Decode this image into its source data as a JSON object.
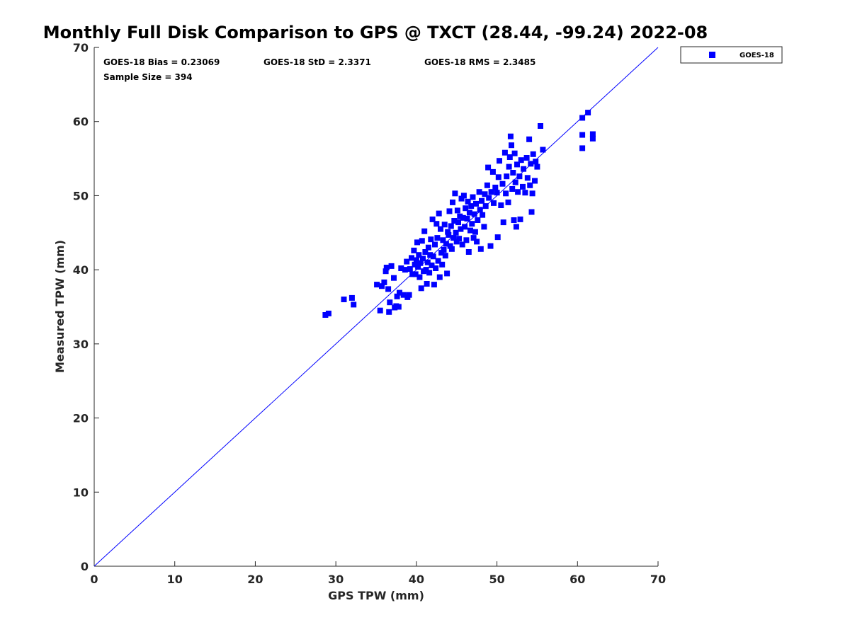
{
  "chart_data": {
    "type": "scatter",
    "title": "Monthly Full Disk Comparison to GPS @ TXCT (28.44, -99.24) 2022-08",
    "xlabel": "GPS TPW (mm)",
    "ylabel": "Measured TPW (mm)",
    "xlim": [
      0,
      70
    ],
    "ylim": [
      0,
      70
    ],
    "xticks": [
      "0",
      "10",
      "20",
      "30",
      "40",
      "50",
      "60",
      "70"
    ],
    "yticks": [
      "0",
      "10",
      "20",
      "30",
      "40",
      "50",
      "60",
      "70"
    ],
    "grid": false,
    "legend_position": "outside-top-right",
    "reference_line": {
      "from": [
        0,
        0
      ],
      "to": [
        70,
        70
      ],
      "color": "#0000ff"
    },
    "stats": {
      "bias": "GOES-18 Bias = 0.23069",
      "std": "GOES-18 StD = 2.3371",
      "rms": "GOES-18 RMS = 2.3485",
      "sample_size": "Sample Size = 394"
    },
    "series": [
      {
        "name": "GOES-18",
        "color": "#0000ff",
        "marker": "square",
        "points": [
          [
            28.7,
            33.9
          ],
          [
            29.1,
            34.1
          ],
          [
            31.0,
            36.0
          ],
          [
            32.0,
            36.2
          ],
          [
            32.2,
            35.3
          ],
          [
            35.1,
            38.0
          ],
          [
            35.5,
            34.5
          ],
          [
            35.7,
            37.8
          ],
          [
            36.0,
            38.3
          ],
          [
            36.2,
            39.8
          ],
          [
            36.3,
            40.3
          ],
          [
            36.5,
            37.4
          ],
          [
            36.6,
            34.3
          ],
          [
            36.7,
            35.6
          ],
          [
            36.9,
            40.5
          ],
          [
            37.2,
            38.9
          ],
          [
            37.3,
            34.9
          ],
          [
            37.5,
            35.1
          ],
          [
            37.6,
            36.4
          ],
          [
            37.8,
            35.0
          ],
          [
            37.9,
            36.9
          ],
          [
            38.1,
            40.2
          ],
          [
            38.4,
            36.6
          ],
          [
            38.6,
            40.0
          ],
          [
            38.8,
            41.1
          ],
          [
            38.9,
            36.3
          ],
          [
            39.1,
            36.6
          ],
          [
            39.2,
            40.1
          ],
          [
            39.4,
            41.6
          ],
          [
            39.5,
            39.4
          ],
          [
            39.7,
            42.6
          ],
          [
            39.8,
            40.7
          ],
          [
            39.9,
            39.4
          ],
          [
            40.0,
            41.3
          ],
          [
            40.1,
            43.7
          ],
          [
            40.2,
            40.4
          ],
          [
            40.3,
            42.0
          ],
          [
            40.4,
            39.0
          ],
          [
            40.5,
            40.9
          ],
          [
            40.6,
            37.5
          ],
          [
            40.7,
            43.9
          ],
          [
            40.8,
            41.5
          ],
          [
            40.9,
            39.8
          ],
          [
            41.0,
            45.2
          ],
          [
            41.1,
            42.4
          ],
          [
            41.2,
            40.0
          ],
          [
            41.3,
            38.1
          ],
          [
            41.4,
            41.0
          ],
          [
            41.5,
            43.0
          ],
          [
            41.6,
            39.6
          ],
          [
            41.7,
            42.0
          ],
          [
            41.8,
            44.1
          ],
          [
            41.9,
            40.6
          ],
          [
            42.0,
            46.8
          ],
          [
            42.1,
            41.8
          ],
          [
            42.2,
            38.0
          ],
          [
            42.3,
            43.4
          ],
          [
            42.4,
            40.2
          ],
          [
            42.5,
            46.2
          ],
          [
            42.6,
            44.3
          ],
          [
            42.7,
            41.2
          ],
          [
            42.8,
            47.6
          ],
          [
            42.9,
            39.0
          ],
          [
            43.0,
            45.5
          ],
          [
            43.1,
            42.3
          ],
          [
            43.2,
            40.7
          ],
          [
            43.3,
            44.0
          ],
          [
            43.4,
            42.7
          ],
          [
            43.5,
            46.1
          ],
          [
            43.6,
            41.9
          ],
          [
            43.7,
            43.5
          ],
          [
            43.8,
            39.5
          ],
          [
            43.9,
            45.1
          ],
          [
            44.0,
            44.7
          ],
          [
            44.1,
            47.9
          ],
          [
            44.2,
            43.2
          ],
          [
            44.3,
            45.9
          ],
          [
            44.4,
            42.8
          ],
          [
            44.5,
            49.1
          ],
          [
            44.6,
            44.3
          ],
          [
            44.7,
            46.6
          ],
          [
            44.8,
            50.3
          ],
          [
            44.9,
            45.0
          ],
          [
            45.0,
            43.8
          ],
          [
            45.1,
            48.0
          ],
          [
            45.2,
            46.4
          ],
          [
            45.3,
            44.2
          ],
          [
            45.4,
            47.2
          ],
          [
            45.5,
            45.5
          ],
          [
            45.6,
            49.6
          ],
          [
            45.7,
            43.4
          ],
          [
            45.8,
            47.0
          ],
          [
            45.9,
            50.0
          ],
          [
            46.0,
            45.8
          ],
          [
            46.1,
            48.3
          ],
          [
            46.2,
            44.0
          ],
          [
            46.3,
            46.9
          ],
          [
            46.4,
            49.2
          ],
          [
            46.5,
            42.4
          ],
          [
            46.6,
            47.7
          ],
          [
            46.7,
            45.3
          ],
          [
            46.8,
            48.6
          ],
          [
            46.9,
            46.2
          ],
          [
            47.0,
            49.8
          ],
          [
            47.1,
            44.3
          ],
          [
            47.2,
            47.5
          ],
          [
            47.3,
            45.1
          ],
          [
            47.4,
            48.9
          ],
          [
            47.5,
            43.8
          ],
          [
            47.6,
            46.7
          ],
          [
            47.8,
            50.5
          ],
          [
            47.9,
            48.1
          ],
          [
            48.0,
            42.8
          ],
          [
            48.1,
            49.3
          ],
          [
            48.2,
            47.4
          ],
          [
            48.4,
            45.8
          ],
          [
            48.5,
            50.2
          ],
          [
            48.6,
            48.6
          ],
          [
            48.8,
            51.4
          ],
          [
            48.9,
            53.8
          ],
          [
            49.0,
            49.7
          ],
          [
            49.2,
            43.2
          ],
          [
            49.3,
            50.5
          ],
          [
            49.5,
            53.2
          ],
          [
            49.6,
            49.0
          ],
          [
            49.8,
            51.1
          ],
          [
            50.0,
            50.4
          ],
          [
            50.1,
            44.4
          ],
          [
            50.2,
            52.5
          ],
          [
            50.3,
            54.7
          ],
          [
            50.5,
            48.7
          ],
          [
            50.7,
            51.6
          ],
          [
            50.8,
            46.4
          ],
          [
            51.0,
            55.8
          ],
          [
            51.1,
            50.3
          ],
          [
            51.2,
            52.6
          ],
          [
            51.4,
            49.1
          ],
          [
            51.5,
            53.9
          ],
          [
            51.6,
            55.2
          ],
          [
            51.7,
            58.0
          ],
          [
            51.8,
            56.8
          ],
          [
            51.9,
            50.9
          ],
          [
            52.0,
            53.1
          ],
          [
            52.1,
            46.7
          ],
          [
            52.2,
            55.7
          ],
          [
            52.3,
            51.8
          ],
          [
            52.4,
            45.8
          ],
          [
            52.5,
            54.2
          ],
          [
            52.6,
            50.5
          ],
          [
            52.8,
            52.6
          ],
          [
            52.9,
            46.8
          ],
          [
            53.0,
            54.8
          ],
          [
            53.2,
            51.2
          ],
          [
            53.3,
            53.6
          ],
          [
            53.5,
            50.4
          ],
          [
            53.7,
            55.1
          ],
          [
            53.8,
            52.4
          ],
          [
            54.0,
            57.6
          ],
          [
            54.1,
            51.4
          ],
          [
            54.2,
            54.3
          ],
          [
            54.3,
            47.8
          ],
          [
            54.4,
            50.3
          ],
          [
            54.5,
            55.6
          ],
          [
            54.7,
            52.0
          ],
          [
            54.8,
            54.6
          ],
          [
            55.0,
            53.9
          ],
          [
            55.4,
            59.4
          ],
          [
            55.7,
            56.2
          ],
          [
            60.6,
            60.5
          ],
          [
            60.6,
            58.2
          ],
          [
            60.6,
            56.4
          ],
          [
            61.3,
            61.2
          ],
          [
            61.9,
            58.3
          ],
          [
            61.9,
            57.7
          ]
        ]
      }
    ]
  }
}
